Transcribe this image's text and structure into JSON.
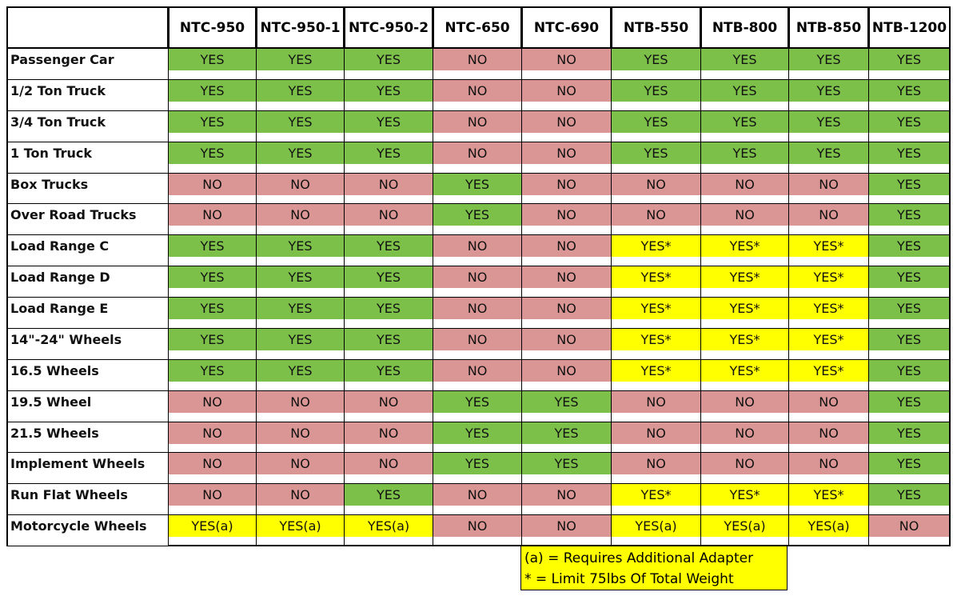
{
  "table": {
    "columns": [
      "NTC-950",
      "NTC-950-1",
      "NTC-950-2",
      "NTC-650",
      "NTC-690",
      "NTB-550",
      "NTB-800",
      "NTB-850",
      "NTB-1200"
    ],
    "rows": [
      {
        "label": "Passenger Car",
        "cells": [
          "YES",
          "YES",
          "YES",
          "NO",
          "NO",
          "YES",
          "YES",
          "YES",
          "YES"
        ],
        "fills": [
          "#7cc04a",
          "#7cc04a",
          "#7cc04a",
          "#da9694",
          "#da9694",
          "#7cc04a",
          "#7cc04a",
          "#7cc04a",
          "#7cc04a"
        ]
      },
      {
        "label": "1/2 Ton Truck",
        "cells": [
          "YES",
          "YES",
          "YES",
          "NO",
          "NO",
          "YES",
          "YES",
          "YES",
          "YES"
        ],
        "fills": [
          "#7cc04a",
          "#7cc04a",
          "#7cc04a",
          "#da9694",
          "#da9694",
          "#7cc04a",
          "#7cc04a",
          "#7cc04a",
          "#7cc04a"
        ]
      },
      {
        "label": "3/4 Ton Truck",
        "cells": [
          "YES",
          "YES",
          "YES",
          "NO",
          "NO",
          "YES",
          "YES",
          "YES",
          "YES"
        ],
        "fills": [
          "#7cc04a",
          "#7cc04a",
          "#7cc04a",
          "#da9694",
          "#da9694",
          "#7cc04a",
          "#7cc04a",
          "#7cc04a",
          "#7cc04a"
        ]
      },
      {
        "label": "1 Ton Truck",
        "cells": [
          "YES",
          "YES",
          "YES",
          "NO",
          "NO",
          "YES",
          "YES",
          "YES",
          "YES"
        ],
        "fills": [
          "#7cc04a",
          "#7cc04a",
          "#7cc04a",
          "#da9694",
          "#da9694",
          "#7cc04a",
          "#7cc04a",
          "#7cc04a",
          "#7cc04a"
        ]
      },
      {
        "label": "Box Trucks",
        "cells": [
          "NO",
          "NO",
          "NO",
          "YES",
          "NO",
          "NO",
          "NO",
          "NO",
          "YES"
        ],
        "fills": [
          "#da9694",
          "#da9694",
          "#da9694",
          "#7cc04a",
          "#da9694",
          "#da9694",
          "#da9694",
          "#da9694",
          "#7cc04a"
        ]
      },
      {
        "label": "Over Road Trucks",
        "cells": [
          "NO",
          "NO",
          "NO",
          "YES",
          "NO",
          "NO",
          "NO",
          "NO",
          "YES"
        ],
        "fills": [
          "#da9694",
          "#da9694",
          "#da9694",
          "#7cc04a",
          "#da9694",
          "#da9694",
          "#da9694",
          "#da9694",
          "#7cc04a"
        ]
      },
      {
        "label": "Load Range C",
        "cells": [
          "YES",
          "YES",
          "YES",
          "NO",
          "NO",
          "YES*",
          "YES*",
          "YES*",
          "YES"
        ],
        "fills": [
          "#7cc04a",
          "#7cc04a",
          "#7cc04a",
          "#da9694",
          "#da9694",
          "#ffff00",
          "#ffff00",
          "#ffff00",
          "#7cc04a"
        ]
      },
      {
        "label": "Load Range D",
        "cells": [
          "YES",
          "YES",
          "YES",
          "NO",
          "NO",
          "YES*",
          "YES*",
          "YES*",
          "YES"
        ],
        "fills": [
          "#7cc04a",
          "#7cc04a",
          "#7cc04a",
          "#da9694",
          "#da9694",
          "#ffff00",
          "#ffff00",
          "#ffff00",
          "#7cc04a"
        ]
      },
      {
        "label": "Load Range E",
        "cells": [
          "YES",
          "YES",
          "YES",
          "NO",
          "NO",
          "YES*",
          "YES*",
          "YES*",
          "YES"
        ],
        "fills": [
          "#7cc04a",
          "#7cc04a",
          "#7cc04a",
          "#da9694",
          "#da9694",
          "#ffff00",
          "#ffff00",
          "#ffff00",
          "#7cc04a"
        ]
      },
      {
        "label": "14\"-24\" Wheels",
        "cells": [
          "YES",
          "YES",
          "YES",
          "NO",
          "NO",
          "YES*",
          "YES*",
          "YES*",
          "YES"
        ],
        "fills": [
          "#7cc04a",
          "#7cc04a",
          "#7cc04a",
          "#da9694",
          "#da9694",
          "#ffff00",
          "#ffff00",
          "#ffff00",
          "#7cc04a"
        ]
      },
      {
        "label": "16.5 Wheels",
        "cells": [
          "YES",
          "YES",
          "YES",
          "NO",
          "NO",
          "YES*",
          "YES*",
          "YES*",
          "YES"
        ],
        "fills": [
          "#7cc04a",
          "#7cc04a",
          "#7cc04a",
          "#da9694",
          "#da9694",
          "#ffff00",
          "#ffff00",
          "#ffff00",
          "#7cc04a"
        ]
      },
      {
        "label": "19.5 Wheel",
        "cells": [
          "NO",
          "NO",
          "NO",
          "YES",
          "YES",
          "NO",
          "NO",
          "NO",
          "YES"
        ],
        "fills": [
          "#da9694",
          "#da9694",
          "#da9694",
          "#7cc04a",
          "#7cc04a",
          "#da9694",
          "#da9694",
          "#da9694",
          "#7cc04a"
        ]
      },
      {
        "label": "21.5 Wheels",
        "cells": [
          "NO",
          "NO",
          "NO",
          "YES",
          "YES",
          "NO",
          "NO",
          "NO",
          "YES"
        ],
        "fills": [
          "#da9694",
          "#da9694",
          "#da9694",
          "#7cc04a",
          "#7cc04a",
          "#da9694",
          "#da9694",
          "#da9694",
          "#7cc04a"
        ]
      },
      {
        "label": "Implement Wheels",
        "cells": [
          "NO",
          "NO",
          "NO",
          "YES",
          "YES",
          "NO",
          "NO",
          "NO",
          "YES"
        ],
        "fills": [
          "#da9694",
          "#da9694",
          "#da9694",
          "#7cc04a",
          "#7cc04a",
          "#da9694",
          "#da9694",
          "#da9694",
          "#7cc04a"
        ]
      },
      {
        "label": "Run Flat Wheels",
        "cells": [
          "NO",
          "NO",
          "YES",
          "NO",
          "NO",
          "YES*",
          "YES*",
          "YES*",
          "YES"
        ],
        "fills": [
          "#da9694",
          "#da9694",
          "#7cc04a",
          "#da9694",
          "#da9694",
          "#ffff00",
          "#ffff00",
          "#ffff00",
          "#7cc04a"
        ]
      },
      {
        "label": "Motorcycle Wheels",
        "cells": [
          "YES(a)",
          "YES(a)",
          "YES(a)",
          "NO",
          "NO",
          "YES(a)",
          "YES(a)",
          "YES(a)",
          "NO"
        ],
        "fills": [
          "#ffff00",
          "#ffff00",
          "#ffff00",
          "#da9694",
          "#da9694",
          "#ffff00",
          "#ffff00",
          "#ffff00",
          "#da9694"
        ]
      }
    ]
  },
  "legend": [
    "(a) = Requires Additional Adapter",
    "* = Limit 75lbs Of Total Weight"
  ]
}
